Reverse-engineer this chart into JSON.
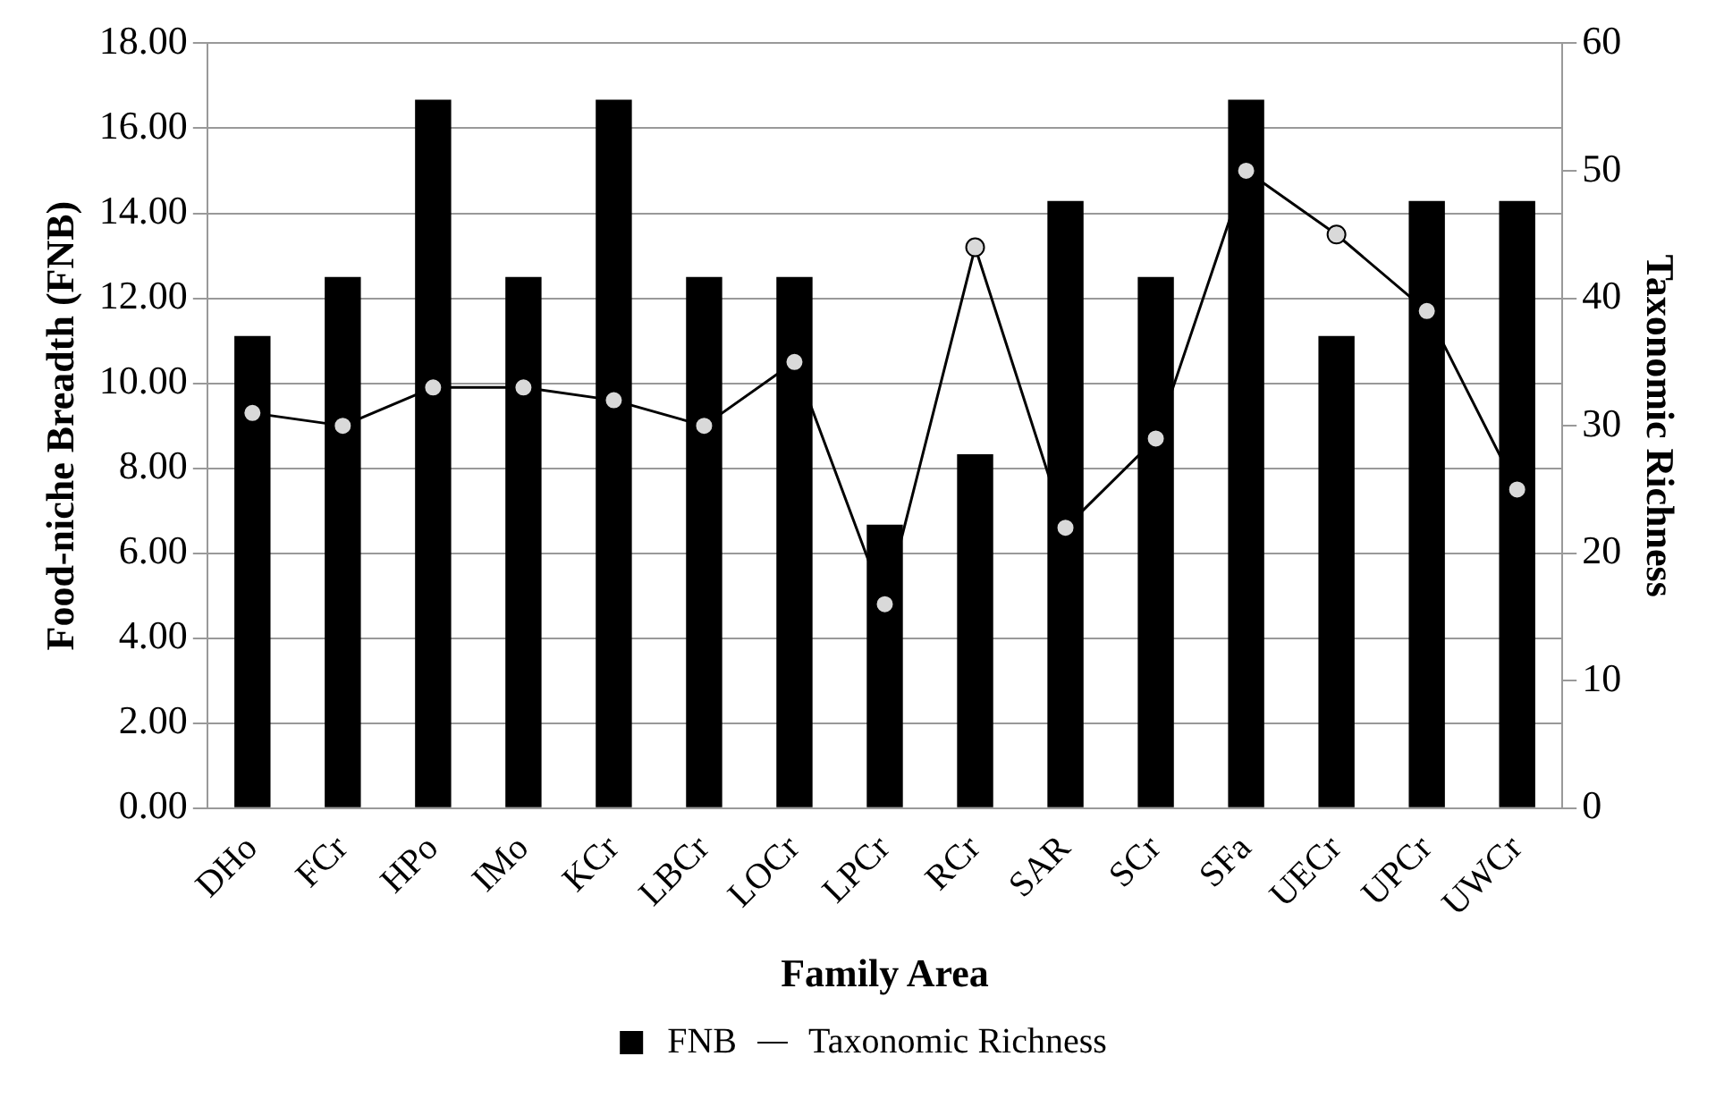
{
  "chart_data": {
    "type": "bar",
    "xlabel": "Family Area",
    "ylabel": "Food-niche Breadth (FNB)",
    "y2label": "Taxonomic Richness",
    "categories": [
      "DHo",
      "FCr",
      "HPo",
      "IMo",
      "KCr",
      "LBCr",
      "LOCr",
      "LPCr",
      "RCr",
      "SAR",
      "SCr",
      "SFa",
      "UECr",
      "UPCr",
      "UWCr"
    ],
    "series": [
      {
        "name": "FNB",
        "color": "#000000",
        "values": [
          11.11,
          12.5,
          16.67,
          12.5,
          16.67,
          12.5,
          12.5,
          6.67,
          8.33,
          14.29,
          12.5,
          16.67,
          11.11,
          14.29,
          14.29
        ]
      },
      {
        "name": "Taxonomic Richness",
        "type": "line",
        "axis": "y2",
        "color": "#000000",
        "marker": "circle",
        "values": [
          31,
          30,
          33,
          33,
          32,
          30,
          35,
          16,
          44,
          22,
          29,
          50,
          45,
          39,
          25
        ]
      }
    ],
    "ylim": [
      0,
      18
    ],
    "yticks": [
      {
        "value": 0,
        "label": "0.00"
      },
      {
        "value": 2,
        "label": "2.00"
      },
      {
        "value": 4,
        "label": "4.00"
      },
      {
        "value": 6,
        "label": "6.00"
      },
      {
        "value": 8,
        "label": "8.00"
      },
      {
        "value": 10,
        "label": "10.00"
      },
      {
        "value": 12,
        "label": "12.00"
      },
      {
        "value": 14,
        "label": "14.00"
      },
      {
        "value": 16,
        "label": "16.00"
      },
      {
        "value": 18,
        "label": "18.00"
      }
    ],
    "y2lim": [
      0,
      60
    ],
    "y2ticks": [
      0,
      10,
      20,
      30,
      40,
      50,
      60
    ],
    "grid": "y",
    "legend": "bottom"
  }
}
